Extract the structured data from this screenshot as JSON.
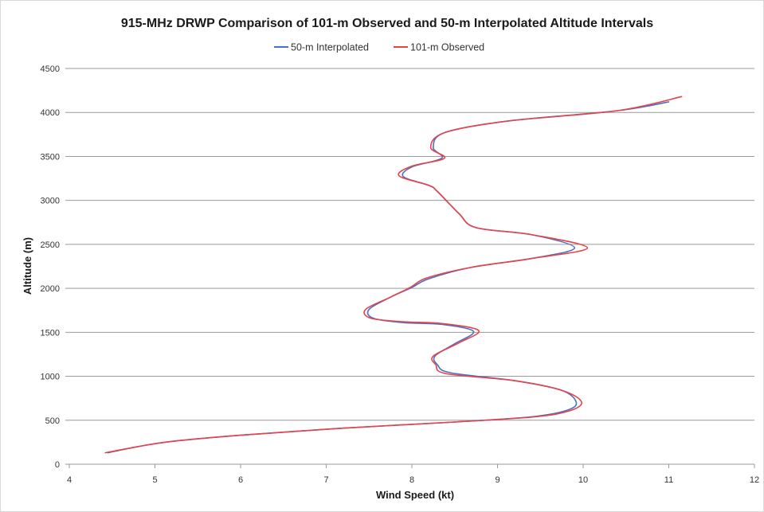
{
  "chart_data": {
    "type": "line",
    "title": "915-MHz DRWP Comparison of 101-m Observed and 50-m Interpolated Altitude Intervals",
    "xlabel": "Wind Speed (kt)",
    "ylabel": "Altitude (m)",
    "xlim": [
      4,
      12
    ],
    "ylim": [
      0,
      4500
    ],
    "x_ticks": [
      "4",
      "5",
      "6",
      "7",
      "8",
      "9",
      "10",
      "11",
      "12"
    ],
    "y_ticks": [
      "0",
      "500",
      "1000",
      "1500",
      "2000",
      "2500",
      "3000",
      "3500",
      "4000",
      "4500"
    ],
    "grid": "horizontal",
    "legend_position": "top",
    "series": [
      {
        "name": "50-m Interpolated",
        "color": "#4472c4",
        "points": [
          [
            4.45,
            130
          ],
          [
            4.8,
            200
          ],
          [
            5.2,
            260
          ],
          [
            6.0,
            330
          ],
          [
            7.2,
            410
          ],
          [
            8.5,
            480
          ],
          [
            9.4,
            540
          ],
          [
            9.8,
            610
          ],
          [
            9.92,
            700
          ],
          [
            9.75,
            840
          ],
          [
            9.2,
            950
          ],
          [
            8.45,
            1040
          ],
          [
            8.3,
            1130
          ],
          [
            8.27,
            1230
          ],
          [
            8.5,
            1370
          ],
          [
            8.72,
            1510
          ],
          [
            8.35,
            1590
          ],
          [
            7.9,
            1610
          ],
          [
            7.55,
            1660
          ],
          [
            7.5,
            1760
          ],
          [
            7.75,
            1900
          ],
          [
            8.0,
            2010
          ],
          [
            8.2,
            2110
          ],
          [
            8.7,
            2240
          ],
          [
            9.4,
            2340
          ],
          [
            9.9,
            2460
          ],
          [
            9.4,
            2610
          ],
          [
            8.75,
            2690
          ],
          [
            8.55,
            2850
          ],
          [
            8.3,
            3100
          ],
          [
            8.2,
            3170
          ],
          [
            7.9,
            3270
          ],
          [
            8.0,
            3380
          ],
          [
            8.35,
            3480
          ],
          [
            8.25,
            3600
          ],
          [
            8.38,
            3770
          ],
          [
            9.1,
            3900
          ],
          [
            10.4,
            4020
          ],
          [
            11.0,
            4120
          ]
        ]
      },
      {
        "name": "101-m Observed",
        "color": "#e8424a",
        "points": [
          [
            4.42,
            130
          ],
          [
            4.8,
            200
          ],
          [
            5.2,
            260
          ],
          [
            6.0,
            330
          ],
          [
            7.2,
            410
          ],
          [
            8.5,
            480
          ],
          [
            9.45,
            540
          ],
          [
            9.85,
            610
          ],
          [
            9.98,
            710
          ],
          [
            9.75,
            840
          ],
          [
            9.2,
            950
          ],
          [
            8.4,
            1030
          ],
          [
            8.28,
            1130
          ],
          [
            8.25,
            1230
          ],
          [
            8.55,
            1380
          ],
          [
            8.78,
            1520
          ],
          [
            8.35,
            1600
          ],
          [
            7.9,
            1620
          ],
          [
            7.52,
            1660
          ],
          [
            7.46,
            1760
          ],
          [
            7.75,
            1900
          ],
          [
            7.98,
            2010
          ],
          [
            8.18,
            2120
          ],
          [
            8.7,
            2240
          ],
          [
            9.4,
            2340
          ],
          [
            10.05,
            2460
          ],
          [
            9.4,
            2610
          ],
          [
            8.75,
            2690
          ],
          [
            8.55,
            2850
          ],
          [
            8.3,
            3100
          ],
          [
            8.2,
            3170
          ],
          [
            7.85,
            3280
          ],
          [
            8.0,
            3390
          ],
          [
            8.38,
            3480
          ],
          [
            8.22,
            3600
          ],
          [
            8.38,
            3770
          ],
          [
            9.1,
            3900
          ],
          [
            10.4,
            4020
          ],
          [
            11.15,
            4180
          ]
        ]
      }
    ]
  }
}
